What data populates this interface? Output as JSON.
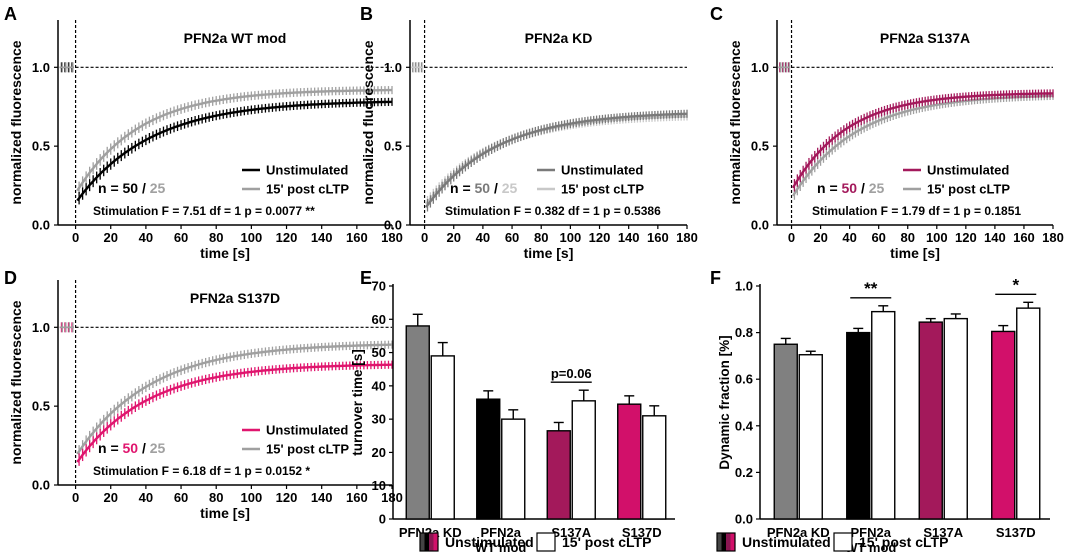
{
  "figure": {
    "bottom_legend": [
      {
        "label": "Unstimulated",
        "swatch_colors": [
          "#444444",
          "#000000",
          "#8a1652",
          "#d2106a"
        ]
      },
      {
        "label": "15' post cLTP",
        "swatch_colors": [
          "#ffffff"
        ]
      }
    ]
  },
  "chart_data": [
    {
      "panel": "A",
      "type": "line",
      "title": "PFN2a WT mod",
      "xlabel": "time [s]",
      "ylabel": "normalized fluorescence",
      "xlim": [
        -10,
        180
      ],
      "ylim": [
        0,
        1.3
      ],
      "xticks": [
        "0",
        "20",
        "40",
        "60",
        "80",
        "100",
        "120",
        "140",
        "160",
        "180"
      ],
      "yticks": [
        "0.0",
        "0.5",
        "1.0"
      ],
      "reference_line": 1.0,
      "series": [
        {
          "name": "Unstimulated",
          "color": "#000000",
          "plateau": 0.79,
          "start": 0.14,
          "tau": 42
        },
        {
          "name": "15' post cLTP",
          "color": "#a0a0a0",
          "plateau": 0.86,
          "start": 0.2,
          "tau": 36
        }
      ],
      "n_label": {
        "prefix": "n = ",
        "a": "50",
        "sep": " / ",
        "b": "25",
        "a_color": "#000000",
        "b_color": "#a0a0a0"
      },
      "stats": "Stimulation  F = 7.51  df = 1  p = 0.0077 **"
    },
    {
      "panel": "B",
      "type": "line",
      "title": "PFN2a KD",
      "xlabel": "time [s]",
      "ylabel": "normalized fluorescence",
      "xlim": [
        -10,
        180
      ],
      "ylim": [
        0,
        1.3
      ],
      "xticks": [
        "0",
        "20",
        "40",
        "60",
        "80",
        "100",
        "120",
        "140",
        "160",
        "180"
      ],
      "yticks": [
        "0.0",
        "0.5",
        "1.0"
      ],
      "reference_line": 1.0,
      "series": [
        {
          "name": "Unstimulated",
          "color": "#7a7a7a",
          "plateau": 0.72,
          "start": 0.1,
          "tau": 48
        },
        {
          "name": "15' post cLTP",
          "color": "#c8c8c8",
          "plateau": 0.7,
          "start": 0.12,
          "tau": 46
        }
      ],
      "n_label": {
        "prefix": "n = ",
        "a": "50",
        "sep": " / ",
        "b": "25",
        "a_color": "#7a7a7a",
        "b_color": "#c8c8c8"
      },
      "stats": "Stimulation  F = 0.382  df = 1  p = 0.5386"
    },
    {
      "panel": "C",
      "type": "line",
      "title": "PFN2a S137A",
      "xlabel": "time [s]",
      "ylabel": "normalized fluorescence",
      "xlim": [
        -10,
        180
      ],
      "ylim": [
        0,
        1.3
      ],
      "xticks": [
        "0",
        "20",
        "40",
        "60",
        "80",
        "100",
        "120",
        "140",
        "160",
        "180"
      ],
      "yticks": [
        "0.0",
        "0.5",
        "1.0"
      ],
      "reference_line": 1.0,
      "series": [
        {
          "name": "Unstimulated",
          "color": "#a3195b",
          "plateau": 0.84,
          "start": 0.22,
          "tau": 38
        },
        {
          "name": "15' post cLTP",
          "color": "#a0a0a0",
          "plateau": 0.83,
          "start": 0.17,
          "tau": 44
        }
      ],
      "n_label": {
        "prefix": "n = ",
        "a": "50",
        "sep": " / ",
        "b": "25",
        "a_color": "#a3195b",
        "b_color": "#a0a0a0"
      },
      "stats": "Stimulation  F = 1.79  df = 1  p = 0.1851"
    },
    {
      "panel": "D",
      "type": "line",
      "title": "PFN2a S137D",
      "xlabel": "time [s]",
      "ylabel": "normalized fluorescence",
      "xlim": [
        -10,
        180
      ],
      "ylim": [
        0,
        1.3
      ],
      "xticks": [
        "0",
        "20",
        "40",
        "60",
        "80",
        "100",
        "120",
        "140",
        "160",
        "180"
      ],
      "yticks": [
        "0.0",
        "0.5",
        "1.0"
      ],
      "reference_line": 1.0,
      "series": [
        {
          "name": "Unstimulated",
          "color": "#e0156e",
          "plateau": 0.77,
          "start": 0.13,
          "tau": 40
        },
        {
          "name": "15' post cLTP",
          "color": "#a0a0a0",
          "plateau": 0.9,
          "start": 0.18,
          "tau": 42
        }
      ],
      "n_label": {
        "prefix": "n = ",
        "a": "50",
        "sep": " / ",
        "b": "25",
        "a_color": "#e0156e",
        "b_color": "#a0a0a0"
      },
      "stats": "Stimulation  F = 6.18  df = 1  p = 0.0152 *"
    },
    {
      "panel": "E",
      "type": "bar",
      "ylabel": "turnover time [s]",
      "ylim": [
        0,
        70
      ],
      "yticks": [
        "0",
        "10",
        "20",
        "30",
        "40",
        "50",
        "60",
        "70"
      ],
      "categories": [
        "PFN2a KD",
        "PFN2a\nWT mod",
        "S137A",
        "S137D"
      ],
      "series": [
        {
          "name": "Unstimulated",
          "values": [
            58,
            36,
            26.5,
            34.5
          ],
          "errors": [
            3.5,
            2.5,
            2.5,
            2.5
          ],
          "colors": [
            "#808080",
            "#000000",
            "#a3195b",
            "#d2106a"
          ]
        },
        {
          "name": "15' post cLTP",
          "values": [
            49,
            30,
            35.5,
            31
          ],
          "errors": [
            4,
            2.8,
            3.2,
            3
          ],
          "colors": [
            "#ffffff",
            "#ffffff",
            "#ffffff",
            "#ffffff"
          ]
        }
      ],
      "annotations": [
        {
          "group": 2,
          "text": "p=0.06"
        }
      ]
    },
    {
      "panel": "F",
      "type": "bar",
      "ylabel": "Dynamic fraction [%]",
      "ylim": [
        0,
        1.0
      ],
      "yticks": [
        "0.0",
        "0.2",
        "0.4",
        "0.6",
        "0.8",
        "1.0"
      ],
      "categories": [
        "PFN2a KD",
        "PFN2a\nWT mod",
        "S137A",
        "S137D"
      ],
      "series": [
        {
          "name": "Unstimulated",
          "values": [
            0.75,
            0.8,
            0.845,
            0.805
          ],
          "errors": [
            0.025,
            0.018,
            0.015,
            0.025
          ],
          "colors": [
            "#808080",
            "#000000",
            "#a3195b",
            "#d2106a"
          ]
        },
        {
          "name": "15' post cLTP",
          "values": [
            0.705,
            0.89,
            0.86,
            0.905
          ],
          "errors": [
            0.015,
            0.025,
            0.02,
            0.025
          ],
          "colors": [
            "#ffffff",
            "#ffffff",
            "#ffffff",
            "#ffffff"
          ]
        }
      ],
      "annotations": [
        {
          "group": 1,
          "text": "**"
        },
        {
          "group": 3,
          "text": "*"
        }
      ]
    }
  ]
}
